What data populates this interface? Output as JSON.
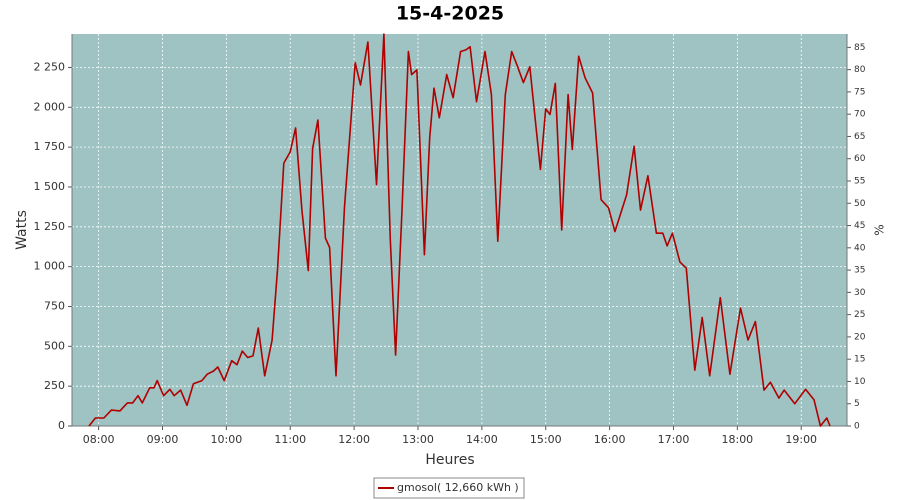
{
  "chart_data": {
    "type": "line",
    "title": "15-4-2025",
    "xlabel": "Heures",
    "ylabel": "Watts",
    "y2label": "%",
    "x": [
      "07:51",
      "07:57",
      "08:05",
      "08:12",
      "08:20",
      "08:27",
      "08:32",
      "08:37",
      "08:41",
      "08:48",
      "08:52",
      "08:55",
      "09:01",
      "09:07",
      "09:11",
      "09:17",
      "09:23",
      "09:29",
      "09:37",
      "09:42",
      "09:48",
      "09:52",
      "09:58",
      "10:05",
      "10:10",
      "10:15",
      "10:20",
      "10:25",
      "10:30",
      "10:36",
      "10:43",
      "10:48",
      "10:54",
      "11:00",
      "11:05",
      "11:11",
      "11:17",
      "11:21",
      "11:26",
      "11:33",
      "11:37",
      "11:43",
      "11:51",
      "12:01",
      "12:06",
      "12:13",
      "12:21",
      "12:28",
      "12:34",
      "12:39",
      "12:45",
      "12:51",
      "12:54",
      "12:59",
      "13:06",
      "13:11",
      "13:15",
      "13:20",
      "13:27",
      "13:33",
      "13:40",
      "13:45",
      "13:49",
      "13:55",
      "14:03",
      "14:09",
      "14:15",
      "14:22",
      "14:28",
      "14:33",
      "14:39",
      "14:45",
      "14:55",
      "15:00",
      "15:04",
      "15:09",
      "15:15",
      "15:21",
      "15:25",
      "15:31",
      "15:37",
      "15:44",
      "15:52",
      "15:59",
      "16:05",
      "16:16",
      "16:23",
      "16:29",
      "16:36",
      "16:44",
      "16:50",
      "16:54",
      "16:59",
      "17:06",
      "17:12",
      "17:20",
      "17:27",
      "17:34",
      "17:44",
      "17:53",
      "18:03",
      "18:10",
      "18:17",
      "18:25",
      "18:31",
      "18:39",
      "18:44",
      "18:54",
      "19:04",
      "19:12",
      "19:18",
      "19:24",
      "19:27"
    ],
    "series": [
      {
        "name": "gmosol( 12,660 kWh )",
        "color": "#b00000",
        "values": [
          0,
          50,
          50,
          100,
          95,
          145,
          145,
          190,
          145,
          240,
          240,
          285,
          190,
          230,
          190,
          225,
          130,
          265,
          285,
          325,
          345,
          370,
          285,
          410,
          385,
          470,
          430,
          440,
          615,
          315,
          540,
          980,
          1650,
          1720,
          1870,
          1355,
          975,
          1740,
          1920,
          1180,
          1120,
          315,
          1375,
          2280,
          2140,
          2410,
          1515,
          2460,
          1170,
          445,
          1355,
          2350,
          2205,
          2235,
          1075,
          1810,
          2120,
          1935,
          2205,
          2060,
          2350,
          2360,
          2380,
          2035,
          2350,
          2080,
          1160,
          2080,
          2350,
          2265,
          2155,
          2255,
          1610,
          1990,
          1955,
          2150,
          1230,
          2080,
          1735,
          2320,
          2185,
          2090,
          1420,
          1370,
          1220,
          1450,
          1755,
          1355,
          1570,
          1210,
          1210,
          1130,
          1210,
          1030,
          990,
          350,
          680,
          315,
          805,
          325,
          740,
          540,
          655,
          225,
          275,
          175,
          225,
          140,
          230,
          165,
          0,
          50,
          0
        ]
      }
    ],
    "xlim": [
      "07:35",
      "19:43"
    ],
    "xticks": [
      "08:00",
      "09:00",
      "10:00",
      "11:00",
      "12:00",
      "13:00",
      "14:00",
      "15:00",
      "16:00",
      "17:00",
      "18:00",
      "19:00"
    ],
    "ylim": [
      0,
      2460
    ],
    "yticks": [
      0,
      250,
      500,
      750,
      {
        "value": 1000,
        "label": "1 000"
      },
      {
        "value": 1250,
        "label": "1 250"
      },
      {
        "value": 1500,
        "label": "1 500"
      },
      {
        "value": 1750,
        "label": "1 750"
      },
      {
        "value": 2000,
        "label": "2 000"
      },
      {
        "value": 2250,
        "label": "2 250"
      }
    ],
    "y2lim": [
      0,
      88
    ],
    "y2ticks": [
      0,
      5,
      10,
      15,
      20,
      25,
      30,
      35,
      40,
      45,
      50,
      55,
      60,
      65,
      70,
      75,
      80,
      85
    ],
    "grid": true,
    "background": "#9fc2c2",
    "legend": "bottom"
  }
}
